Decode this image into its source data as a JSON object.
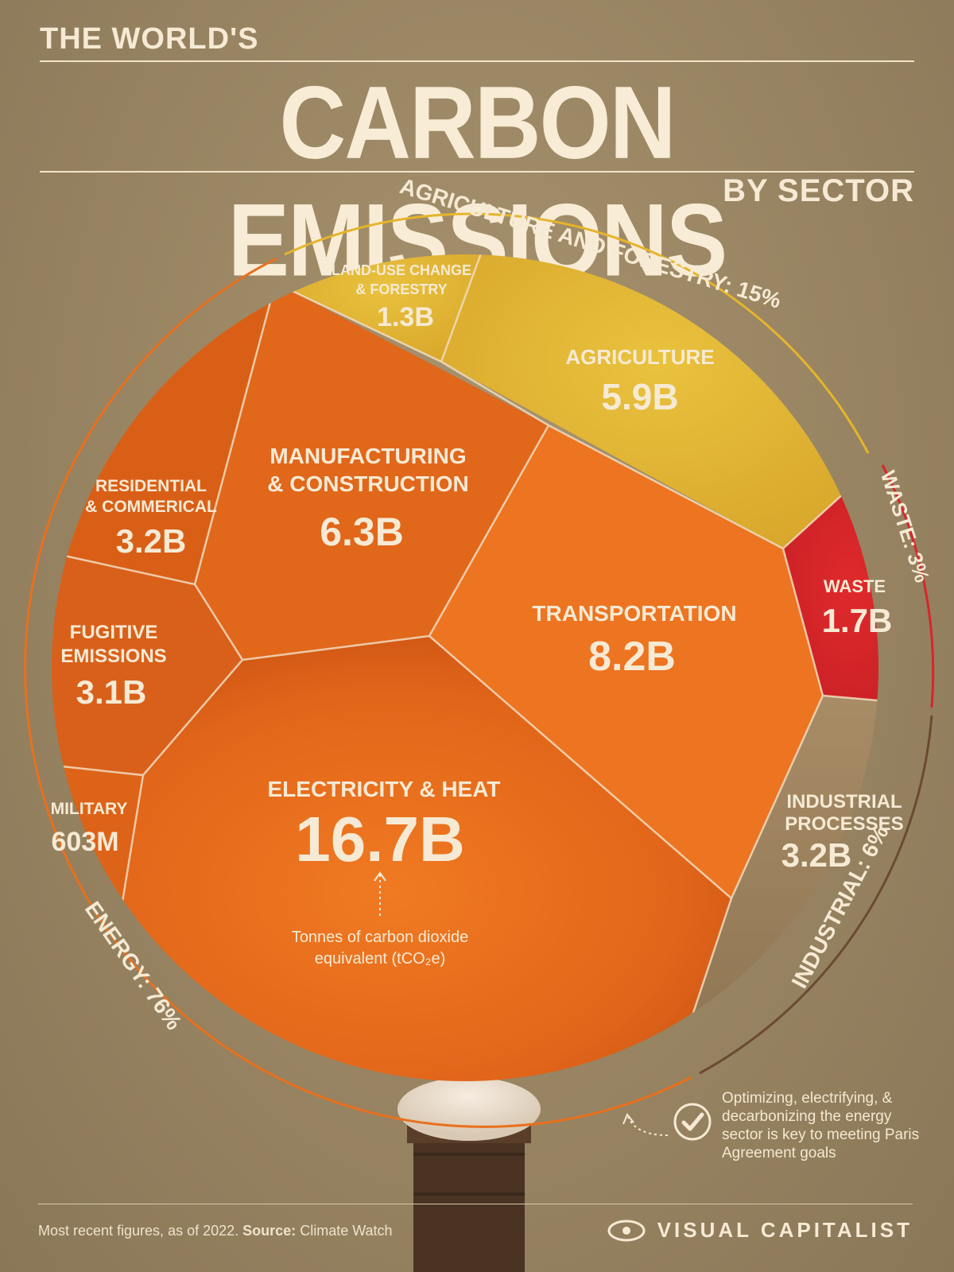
{
  "header": {
    "kicker": "THE WORLD'S",
    "title": "CARBON EMISSIONS",
    "subtitle": "BY SECTOR"
  },
  "colors": {
    "energy": "#e8701e",
    "agriculture": "#e2b52e",
    "waste": "#d8262a",
    "industrial": "#a08560",
    "background": "#9b8764"
  },
  "chart_data": {
    "type": "treemap",
    "title": "CARBON EMISSIONS",
    "unit_note": "Tonnes of carbon dioxide equivalent (tCO₂e)",
    "groups": [
      {
        "name": "AGRICULTURE AND FORESTRY",
        "share_label": "AGRICULTURE AND FORESTRY: 15%",
        "share": 15,
        "color": "#e2b52e",
        "sectors": [
          {
            "name": "LAND-USE CHANGE & FORESTRY",
            "label_lines": [
              "LAND-USE CHANGE",
              "& FORESTRY"
            ],
            "value": 1.3,
            "value_label": "1.3B"
          },
          {
            "name": "AGRICULTURE",
            "label_lines": [
              "AGRICULTURE"
            ],
            "value": 5.9,
            "value_label": "5.9B"
          }
        ]
      },
      {
        "name": "WASTE",
        "share_label": "WASTE: 3%",
        "share": 3,
        "color": "#d8262a",
        "sectors": [
          {
            "name": "WASTE",
            "label_lines": [
              "WASTE"
            ],
            "value": 1.7,
            "value_label": "1.7B"
          }
        ]
      },
      {
        "name": "INDUSTRIAL",
        "share_label": "INDUSTRIAL: 6%",
        "share": 6,
        "color": "#a08560",
        "sectors": [
          {
            "name": "INDUSTRIAL PROCESSES",
            "label_lines": [
              "INDUSTRIAL",
              "PROCESSES"
            ],
            "value": 3.2,
            "value_label": "3.2B"
          }
        ]
      },
      {
        "name": "ENERGY",
        "share_label": "ENERGY: 76%",
        "share": 76,
        "color": "#e8701e",
        "sectors": [
          {
            "name": "RESIDENTIAL & COMMERICAL",
            "label_lines": [
              "RESIDENTIAL",
              "& COMMERICAL"
            ],
            "value": 3.2,
            "value_label": "3.2B"
          },
          {
            "name": "MANUFACTURING & CONSTRUCTION",
            "label_lines": [
              "MANUFACTURING",
              "& CONSTRUCTION"
            ],
            "value": 6.3,
            "value_label": "6.3B"
          },
          {
            "name": "TRANSPORTATION",
            "label_lines": [
              "TRANSPORTATION"
            ],
            "value": 8.2,
            "value_label": "8.2B"
          },
          {
            "name": "FUGITIVE EMISSIONS",
            "label_lines": [
              "FUGITIVE",
              "EMISSIONS"
            ],
            "value": 3.1,
            "value_label": "3.1B"
          },
          {
            "name": "MILITARY",
            "label_lines": [
              "MILITARY"
            ],
            "value": 0.603,
            "value_label": "603M"
          },
          {
            "name": "ELECTRICITY & HEAT",
            "label_lines": [
              "ELECTRICITY & HEAT"
            ],
            "value": 16.7,
            "value_label": "16.7B"
          }
        ]
      }
    ]
  },
  "unit_note_lines": [
    "Tonnes of carbon dioxide",
    "equivalent (tCO₂e)"
  ],
  "note": "Optimizing, electrifying, & decarbonizing the energy sector is key to meeting Paris Agreement goals",
  "footer": {
    "source_prefix": "Most recent figures, as of 2022.",
    "source_label": "Source:",
    "source_value": "Climate Watch",
    "brand": "VISUAL CAPITALIST"
  }
}
